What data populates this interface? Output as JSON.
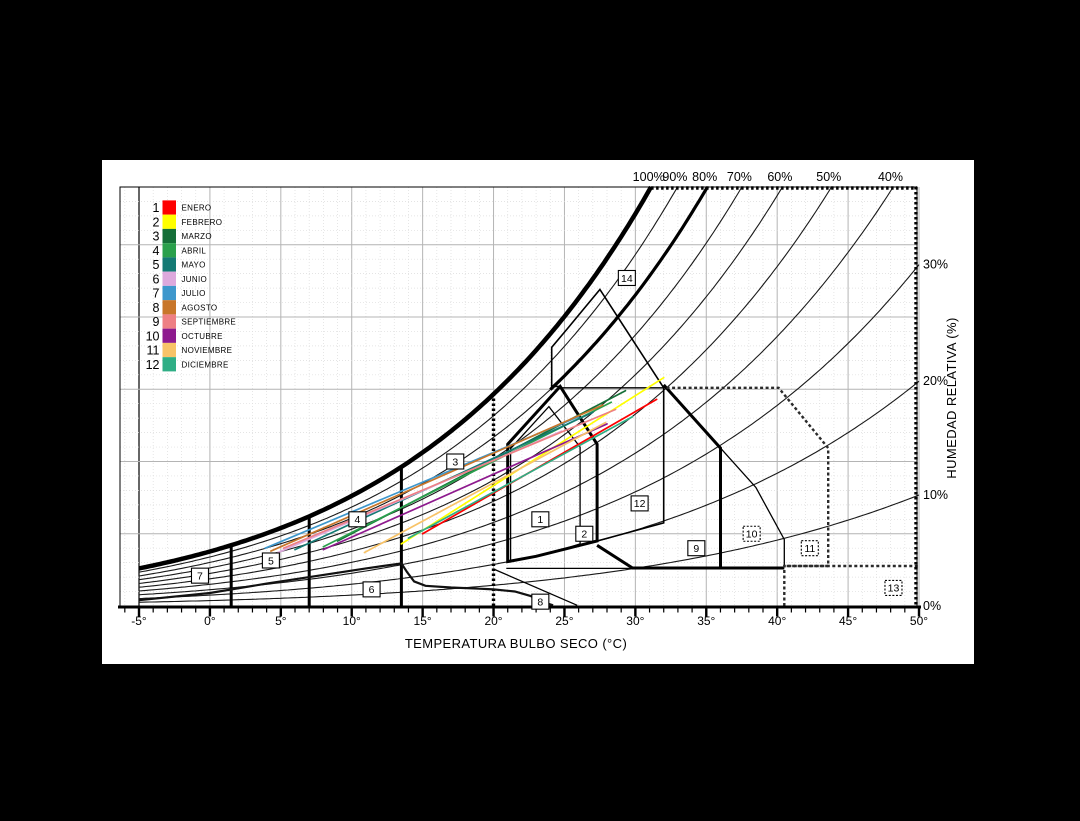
{
  "colors": {
    "background": "#000000",
    "panel": "#ffffff",
    "grid_minor": "#dcdcdc",
    "grid_major": "#b4b4b4",
    "curve": "#1a1a1a",
    "zone_line": "#000000"
  },
  "chart_data": {
    "type": "line",
    "subtype": "psychrometric-bioclimatic-givoni",
    "title": "",
    "xlabel": "TEMPERATURA BULBO SECO (°C)",
    "ylabel_right": "HUMEDAD RELATIVA (%)",
    "x_range": [
      -5,
      50
    ],
    "x_tick_step_minor": 1,
    "x_tick_step_major": 5,
    "x_tick_labels": [
      "-5°",
      "0°",
      "5°",
      "10°",
      "15°",
      "20°",
      "25°",
      "30°",
      "35°",
      "40°",
      "45°",
      "50°"
    ],
    "humidity_ratio_range_gkg": [
      0,
      29
    ],
    "rh_curves_percent": [
      10,
      20,
      30,
      40,
      50,
      60,
      70,
      80,
      90,
      100
    ],
    "rh_labels_top": [
      {
        "value": 100,
        "text": "100%"
      },
      {
        "value": 90,
        "text": "90%"
      },
      {
        "value": 80,
        "text": "80%"
      },
      {
        "value": 70,
        "text": "70%"
      },
      {
        "value": 60,
        "text": "60%"
      },
      {
        "value": 50,
        "text": "50%"
      },
      {
        "value": 40,
        "text": "40%"
      }
    ],
    "rh_labels_right": [
      {
        "value": 30,
        "text": "30%"
      },
      {
        "value": 20,
        "text": "20%"
      },
      {
        "value": 10,
        "text": "10%"
      },
      {
        "value": 0,
        "text": "0%"
      }
    ],
    "months": [
      {
        "num": "1",
        "name": "ENERO",
        "color": "#fe0000",
        "line": [
          15.0,
          5.0,
          31.5,
          14.3
        ]
      },
      {
        "num": "2",
        "name": "FEBRERO",
        "color": "#ffff00",
        "line": [
          13.5,
          4.3,
          32.0,
          15.8
        ]
      },
      {
        "num": "3",
        "name": "MARZO",
        "color": "#156f38",
        "line": [
          9.0,
          4.5,
          29.3,
          14.9
        ]
      },
      {
        "num": "4",
        "name": "ABRIL",
        "color": "#2aa04c",
        "line": [
          8.0,
          4.1,
          28.3,
          14.1
        ]
      },
      {
        "num": "5",
        "name": "MAYO",
        "color": "#147a74",
        "line": [
          6.0,
          3.9,
          27.0,
          13.4
        ]
      },
      {
        "num": "6",
        "name": "JUNIO",
        "color": "#dda9dd",
        "line": [
          4.8,
          3.7,
          24.8,
          12.1
        ]
      },
      {
        "num": "7",
        "name": "JULIO",
        "color": "#3e97cc",
        "line": [
          3.9,
          4.0,
          26.0,
          13.1
        ]
      },
      {
        "num": "8",
        "name": "AGOSTO",
        "color": "#c8762a",
        "line": [
          4.3,
          3.8,
          27.7,
          13.9
        ]
      },
      {
        "num": "9",
        "name": "SEPTIEMBRE",
        "color": "#ee8084",
        "line": [
          5.2,
          4.0,
          28.6,
          13.6
        ]
      },
      {
        "num": "10",
        "name": "OCTUBRE",
        "color": "#8e1a8e",
        "line": [
          8.0,
          3.9,
          28.0,
          12.6
        ]
      },
      {
        "num": "11",
        "name": "NOVIEMBRE",
        "color": "#f8c368",
        "line": [
          10.9,
          3.7,
          27.9,
          12.7
        ]
      },
      {
        "num": "12",
        "name": "DICIEMBRE",
        "color": "#2fae85",
        "line": [
          14.0,
          4.7,
          29.8,
          13.1
        ]
      }
    ],
    "zones": [
      {
        "num": "1",
        "t": 23.3,
        "w": 6.0,
        "dashed": false
      },
      {
        "num": "2",
        "t": 26.4,
        "w": 5.0,
        "dashed": false
      },
      {
        "num": "3",
        "t": 17.3,
        "w": 10.0,
        "dashed": false
      },
      {
        "num": "4",
        "t": 10.4,
        "w": 6.0,
        "dashed": false
      },
      {
        "num": "5",
        "t": 4.3,
        "w": 3.15,
        "dashed": false
      },
      {
        "num": "6",
        "t": 11.4,
        "w": 1.15,
        "dashed": false
      },
      {
        "num": "7",
        "t": -0.7,
        "w": 2.1,
        "dashed": false
      },
      {
        "num": "8",
        "t": 23.3,
        "w": 0.3,
        "dashed": false
      },
      {
        "num": "9",
        "t": 34.3,
        "w": 4.0,
        "dashed": false
      },
      {
        "num": "10",
        "t": 38.2,
        "w": 5.0,
        "dashed": true
      },
      {
        "num": "11",
        "t": 42.3,
        "w": 4.0,
        "dashed": true
      },
      {
        "num": "12",
        "t": 30.3,
        "w": 7.1,
        "dashed": false
      },
      {
        "num": "13",
        "t": 48.2,
        "w": 1.25,
        "dashed": true
      },
      {
        "num": "14",
        "t": 29.4,
        "w": 22.7,
        "dashed": false
      }
    ],
    "zone_lines": [
      {
        "id": "vert-1-5",
        "style": "thick",
        "pts": [
          [
            1.5,
            0
          ],
          [
            1.5,
            4.21
          ]
        ]
      },
      {
        "id": "vert-7",
        "style": "thick",
        "pts": [
          [
            7,
            0
          ],
          [
            7,
            6.23
          ]
        ]
      },
      {
        "id": "vert-13-5",
        "style": "thick",
        "pts": [
          [
            13.5,
            0
          ],
          [
            13.5,
            9.64
          ]
        ]
      },
      {
        "id": "vert-20",
        "style": "thick-dotted",
        "pts": [
          [
            20,
            0
          ],
          [
            20,
            14.7
          ]
        ]
      },
      {
        "id": "humidification-curve",
        "style": "medium",
        "pts": [
          [
            -5,
            0.4
          ],
          [
            0,
            0.9
          ],
          [
            4,
            1.55
          ],
          [
            8,
            2.15
          ],
          [
            11,
            2.6
          ],
          [
            13.5,
            2.95
          ],
          [
            13.9,
            2.35
          ],
          [
            14.4,
            1.7
          ],
          [
            15.2,
            1.4
          ],
          [
            17,
            1.28
          ],
          [
            19,
            1.2
          ],
          [
            20,
            1.15
          ],
          [
            21.5,
            1.0
          ],
          [
            22.6,
            0.7
          ],
          [
            23.4,
            0.3
          ],
          [
            24.2,
            0.05
          ]
        ]
      },
      {
        "id": "zone8-diagonal",
        "style": "thin",
        "pts": [
          [
            20,
            2.56
          ],
          [
            25.9,
            0.05
          ]
        ]
      },
      {
        "id": "comfort-outer",
        "style": "thick",
        "closed": true,
        "pts": [
          [
            21,
            3.07
          ],
          [
            21,
            11.2
          ],
          [
            24.7,
            15.2
          ],
          [
            27.3,
            11.2
          ],
          [
            27.3,
            4.5
          ],
          [
            25,
            3.93
          ],
          [
            23,
            3.44
          ]
        ]
      },
      {
        "id": "comfort-inner",
        "style": "thin",
        "closed": true,
        "pts": [
          [
            21.2,
            3.15
          ],
          [
            21.2,
            10.9
          ],
          [
            23.9,
            13.8
          ],
          [
            26.1,
            11.0
          ],
          [
            26.1,
            4.3
          ],
          [
            24.2,
            3.7
          ],
          [
            22.4,
            3.35
          ]
        ]
      },
      {
        "id": "zone12-outline",
        "style": "medium-thin",
        "pts": [
          [
            24.7,
            15.2
          ],
          [
            24.1,
            15.2
          ],
          [
            24.1,
            17.9
          ],
          [
            25.3,
            19.3
          ],
          [
            26.4,
            20.6
          ],
          [
            27.5,
            21.9
          ],
          [
            32,
            15.1
          ],
          [
            32,
            5.75
          ],
          [
            27.3,
            4.5
          ]
        ]
      },
      {
        "id": "top15-line",
        "style": "thin",
        "pts": [
          [
            24.7,
            15.1
          ],
          [
            32,
            15.1
          ]
        ]
      },
      {
        "id": "comfort-bottom-line",
        "style": "thin",
        "pts": [
          [
            20.9,
            2.6
          ],
          [
            29.8,
            2.6
          ]
        ]
      },
      {
        "id": "zone9-outline",
        "style": "thick",
        "pts": [
          [
            32,
            15.3
          ],
          [
            36,
            10.93
          ],
          [
            36,
            2.63
          ]
        ]
      },
      {
        "id": "zone9-bottom",
        "style": "thick",
        "pts": [
          [
            40.5,
            2.63
          ],
          [
            29.8,
            2.63
          ],
          [
            27.3,
            4.2
          ]
        ]
      },
      {
        "id": "zone10-outline",
        "style": "thin",
        "pts": [
          [
            36,
            10.93
          ],
          [
            38.5,
            8.2
          ],
          [
            40.5,
            4.6
          ],
          [
            40.5,
            2.7
          ]
        ]
      },
      {
        "id": "zone11-outline",
        "style": "dashed-gray",
        "pts": [
          [
            32.2,
            15.1
          ],
          [
            40.1,
            15.1
          ],
          [
            43.6,
            10.93
          ],
          [
            43.6,
            2.77
          ],
          [
            40.5,
            2.77
          ]
        ]
      },
      {
        "id": "zone13-outline",
        "style": "dashed-gray",
        "pts": [
          [
            40.5,
            0
          ],
          [
            40.5,
            2.77
          ],
          [
            50,
            2.77
          ]
        ]
      }
    ],
    "thick_rh_overlay": {
      "rh": 80,
      "from_t": 24
    },
    "legend_position": "top-left inside plot",
    "grid": true
  }
}
